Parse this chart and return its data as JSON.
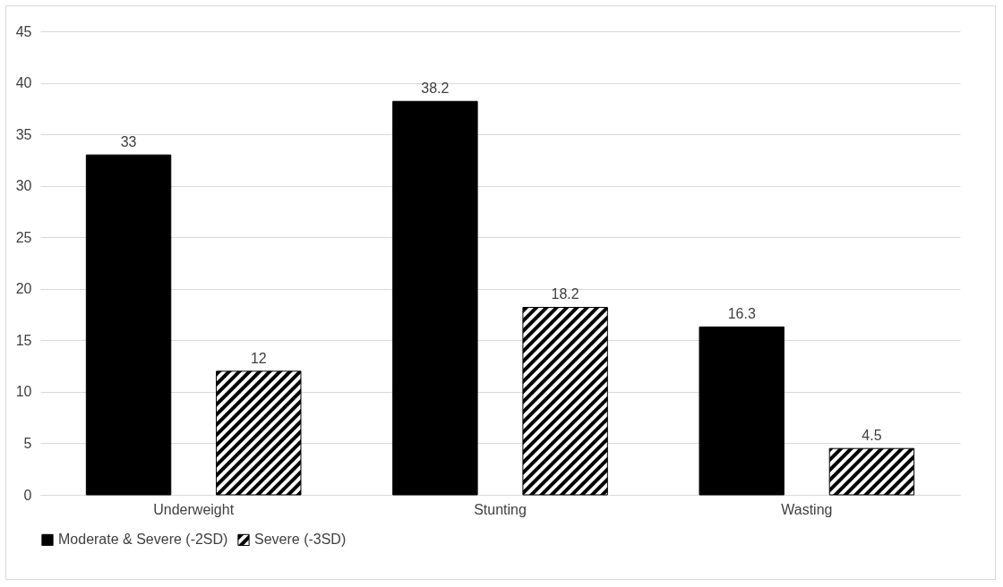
{
  "chart_data": {
    "type": "bar",
    "categories": [
      "Underweight",
      "Stunting",
      "Wasting"
    ],
    "series": [
      {
        "name": "Moderate & Severe (-2SD)",
        "color": "#000000",
        "values": [
          33,
          38.2,
          16.3
        ]
      },
      {
        "name": "Severe (-3SD)",
        "color": "#000000",
        "values": [
          12,
          18.2,
          4.5
        ]
      }
    ],
    "ylim": [
      0,
      45
    ],
    "yticks": [
      0,
      5,
      10,
      15,
      20,
      25,
      30,
      35,
      40,
      45
    ],
    "grid": "y",
    "legend": "bottom",
    "data_labels": true
  }
}
